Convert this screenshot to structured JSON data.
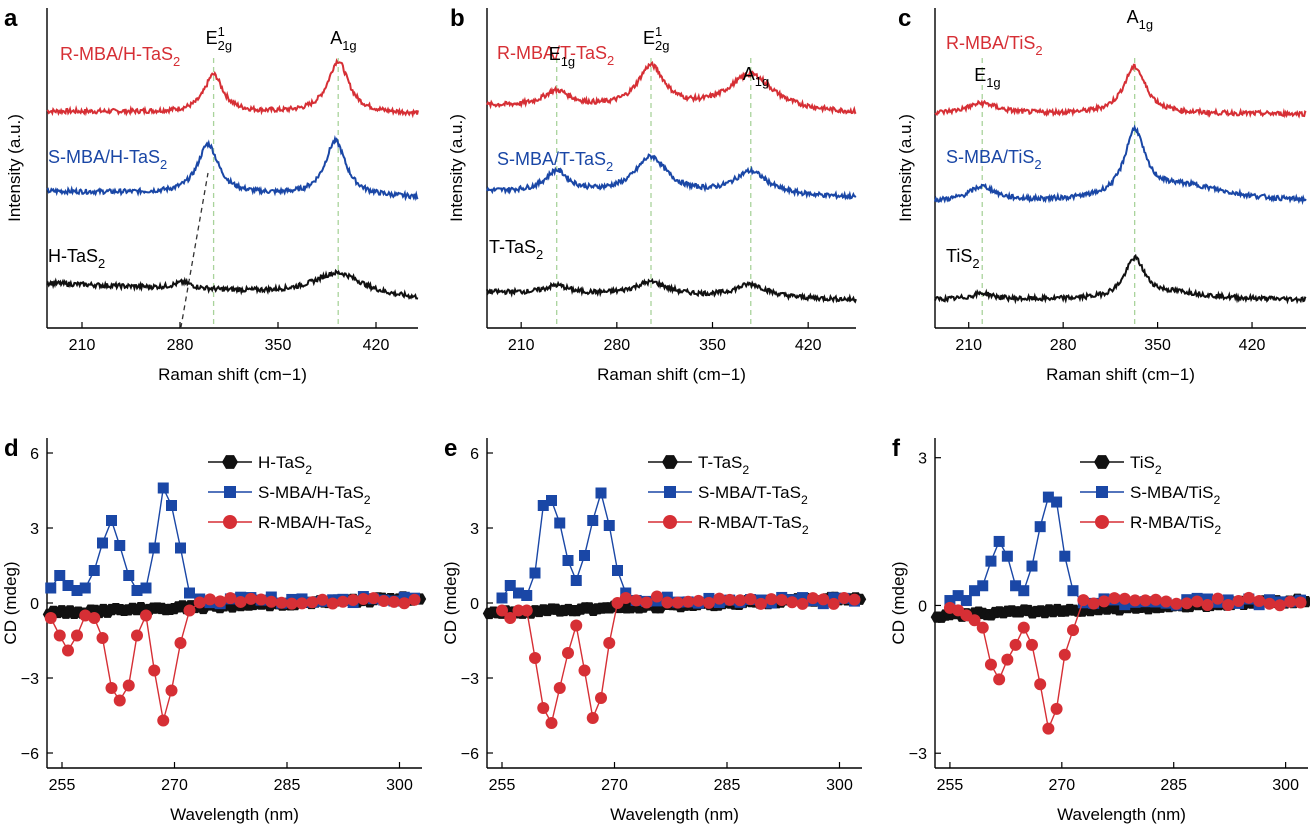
{
  "chart_data": [
    {
      "panel": "a",
      "type": "line",
      "xlabel": "Raman shift (cm−1)",
      "ylabel": "Intensity (a.u.)",
      "xlim": [
        185,
        450
      ],
      "xticks": [
        210,
        280,
        350,
        420
      ],
      "yticks_shown": false,
      "series": [
        {
          "name": "R-MBA/H-TaS",
          "sub": "2",
          "color": "#d62f35",
          "offset": 2.0,
          "peaks": [
            {
              "x": 304,
              "h": 0.72,
              "w": 8
            },
            {
              "x": 393,
              "h": 1.0,
              "w": 9
            }
          ],
          "start_level": 0.05
        },
        {
          "name": "S-MBA/H-TaS",
          "sub": "2",
          "color": "#1a47a6",
          "offset": 1.1,
          "peaks": [
            {
              "x": 300,
              "h": 0.95,
              "w": 9
            },
            {
              "x": 391,
              "h": 1.05,
              "w": 9
            }
          ],
          "start_level": 0.12
        },
        {
          "name": "H-TaS",
          "sub": "2",
          "color": "#111111",
          "offset": 0.0,
          "peaks": [
            {
              "x": 282,
              "h": 0.12,
              "w": 8
            },
            {
              "x": 393,
              "h": 0.45,
              "w": 22
            }
          ],
          "start_level": 0.32
        }
      ],
      "peak_labels": [
        {
          "text": "E",
          "sup": "1",
          "sub": "2g",
          "x": 304
        },
        {
          "text": "A",
          "sub": "1g",
          "x": 393
        }
      ],
      "guide_lines": [
        304,
        393
      ]
    },
    {
      "panel": "b",
      "type": "line",
      "xlabel": "Raman shift (cm−1)",
      "ylabel": "Intensity (a.u.)",
      "xlim": [
        185,
        455
      ],
      "xticks": [
        210,
        280,
        350,
        420
      ],
      "yticks_shown": false,
      "series": [
        {
          "name": "R-MBA/T-TaS",
          "sub": "2",
          "color": "#d62f35",
          "offset": 2.0,
          "peaks": [
            {
              "x": 236,
              "h": 0.3,
              "w": 12
            },
            {
              "x": 305,
              "h": 0.8,
              "w": 12
            },
            {
              "x": 378,
              "h": 0.7,
              "w": 20
            }
          ],
          "start_level": 0.15
        },
        {
          "name": "S-MBA/T-TaS",
          "sub": "2",
          "color": "#1a47a6",
          "offset": 1.1,
          "peaks": [
            {
              "x": 236,
              "h": 0.4,
              "w": 10
            },
            {
              "x": 305,
              "h": 0.7,
              "w": 14
            },
            {
              "x": 378,
              "h": 0.45,
              "w": 15
            }
          ],
          "start_level": 0.12
        },
        {
          "name": "T-TaS",
          "sub": "2",
          "color": "#111111",
          "offset": 0.0,
          "peaks": [
            {
              "x": 236,
              "h": 0.15,
              "w": 10
            },
            {
              "x": 305,
              "h": 0.25,
              "w": 15
            },
            {
              "x": 378,
              "h": 0.25,
              "w": 14
            }
          ],
          "start_level": 0.15
        }
      ],
      "peak_labels": [
        {
          "text": "E",
          "sub": "1g",
          "x": 236
        },
        {
          "text": "E",
          "sup": "1",
          "sub": "2g",
          "x": 305
        },
        {
          "text": "A",
          "sub": "1g",
          "x": 378
        }
      ],
      "guide_lines": [
        236,
        305,
        378
      ]
    },
    {
      "panel": "c",
      "type": "line",
      "xlabel": "Raman shift (cm−1)",
      "ylabel": "Intensity (a.u.)",
      "xlim": [
        185,
        460
      ],
      "xticks": [
        210,
        280,
        350,
        420
      ],
      "yticks_shown": false,
      "series": [
        {
          "name": "R-MBA/TiS",
          "sub": "2",
          "color": "#d62f35",
          "offset": 2.0,
          "peaks": [
            {
              "x": 220,
              "h": 0.2,
              "w": 14
            },
            {
              "x": 333,
              "h": 0.9,
              "w": 10
            }
          ],
          "start_level": 0.0
        },
        {
          "name": "S-MBA/TiS",
          "sub": "2",
          "color": "#1a47a6",
          "offset": 1.05,
          "peaks": [
            {
              "x": 220,
              "h": 0.28,
              "w": 12
            },
            {
              "x": 333,
              "h": 1.25,
              "w": 9
            },
            {
              "x": 370,
              "h": 0.3,
              "w": 40
            }
          ],
          "start_level": 0.0
        },
        {
          "name": "TiS",
          "sub": "2",
          "color": "#111111",
          "offset": 0.0,
          "peaks": [
            {
              "x": 220,
              "h": 0.12,
              "w": 10
            },
            {
              "x": 333,
              "h": 0.75,
              "w": 9
            },
            {
              "x": 365,
              "h": 0.12,
              "w": 30
            }
          ],
          "start_level": 0.0
        }
      ],
      "peak_labels": [
        {
          "text": "E",
          "sub": "1g",
          "x": 220
        },
        {
          "text": "A",
          "sub": "1g",
          "x": 333
        }
      ],
      "guide_lines": [
        220,
        333
      ]
    },
    {
      "panel": "d",
      "type": "scatter",
      "xlabel": "Wavelength (nm)",
      "ylabel": "CD (mdeg)",
      "xlim": [
        253,
        303
      ],
      "ylim": [
        -6.6,
        6.6
      ],
      "xticks": [
        255,
        270,
        285,
        300
      ],
      "yticks": [
        6,
        3,
        0,
        -3,
        -6
      ],
      "series": [
        {
          "name": "H-TaS",
          "sub": "2",
          "marker": "hexagon",
          "color": "#111111"
        },
        {
          "name": "S-MBA/H-TaS",
          "sub": "2",
          "marker": "square",
          "color": "#1a47a6",
          "x": [
            253.5,
            254.7,
            255.8,
            257.0,
            258.1,
            259.3,
            260.4,
            261.6,
            262.7,
            263.9,
            265.0,
            266.2,
            267.3,
            268.5,
            269.6,
            270.8,
            272.0
          ],
          "y": [
            0.6,
            1.1,
            0.7,
            0.5,
            0.6,
            1.3,
            2.4,
            3.3,
            2.3,
            1.1,
            0.5,
            0.6,
            2.2,
            4.6,
            3.9,
            2.2,
            0.4
          ]
        },
        {
          "name": "R-MBA/H-TaS",
          "sub": "2",
          "marker": "circle",
          "color": "#d62f35",
          "x": [
            253.5,
            254.7,
            255.8,
            257.0,
            258.1,
            259.3,
            260.4,
            261.6,
            262.7,
            263.9,
            265.0,
            266.2,
            267.3,
            268.5,
            269.6,
            270.8,
            272.0
          ],
          "y": [
            -0.6,
            -1.3,
            -1.9,
            -1.3,
            -0.5,
            -0.6,
            -1.4,
            -3.4,
            -3.9,
            -3.3,
            -1.3,
            -0.5,
            -2.7,
            -4.7,
            -3.5,
            -1.6,
            -0.3
          ]
        }
      ]
    },
    {
      "panel": "e",
      "type": "scatter",
      "xlabel": "Wavelength (nm)",
      "ylabel": "CD (mdeg)",
      "xlim": [
        253,
        303
      ],
      "ylim": [
        -6.6,
        6.6
      ],
      "xticks": [
        255,
        270,
        285,
        300
      ],
      "yticks": [
        6,
        3,
        0,
        -3,
        -6
      ],
      "series": [
        {
          "name": "T-TaS",
          "sub": "2",
          "marker": "hexagon",
          "color": "#111111"
        },
        {
          "name": "S-MBA/T-TaS",
          "sub": "2",
          "marker": "square",
          "color": "#1a47a6",
          "x": [
            255.0,
            256.1,
            257.2,
            258.3,
            259.4,
            260.5,
            261.6,
            262.7,
            263.8,
            264.9,
            266.0,
            267.1,
            268.2,
            269.3,
            270.4,
            271.5
          ],
          "y": [
            0.2,
            0.7,
            0.4,
            0.3,
            1.2,
            3.9,
            4.1,
            3.2,
            1.7,
            0.9,
            1.9,
            3.3,
            4.4,
            3.1,
            1.3,
            0.4
          ]
        },
        {
          "name": "R-MBA/T-TaS",
          "sub": "2",
          "marker": "circle",
          "color": "#d62f35",
          "x": [
            255.0,
            256.1,
            257.2,
            258.3,
            259.4,
            260.5,
            261.6,
            262.7,
            263.8,
            264.9,
            266.0,
            267.1,
            268.2,
            269.3,
            270.4,
            271.5
          ],
          "y": [
            -0.3,
            -0.6,
            -0.3,
            -0.3,
            -2.2,
            -4.2,
            -4.8,
            -3.4,
            -2.0,
            -0.9,
            -2.7,
            -4.6,
            -3.8,
            -1.6,
            0.0,
            0.2
          ]
        }
      ]
    },
    {
      "panel": "f",
      "type": "scatter",
      "xlabel": "Wavelength (nm)",
      "ylabel": "CD (mdeg)",
      "xlim": [
        253,
        303
      ],
      "ylim": [
        -3.3,
        3.4
      ],
      "xticks": [
        255,
        270,
        285,
        300
      ],
      "yticks": [
        3,
        0,
        -3
      ],
      "series": [
        {
          "name": "TiS",
          "sub": "2",
          "marker": "hexagon",
          "color": "#111111"
        },
        {
          "name": "S-MBA/TiS",
          "sub": "2",
          "marker": "square",
          "color": "#1a47a6",
          "x": [
            255.0,
            256.1,
            257.2,
            258.3,
            259.4,
            260.5,
            261.6,
            262.7,
            263.8,
            264.9,
            266.0,
            267.1,
            268.2,
            269.3,
            270.4,
            271.5
          ],
          "y": [
            0.1,
            0.2,
            0.1,
            0.3,
            0.4,
            0.9,
            1.3,
            1.0,
            0.4,
            0.3,
            0.8,
            1.6,
            2.2,
            2.1,
            1.0,
            0.3
          ]
        },
        {
          "name": "R-MBA/TiS",
          "sub": "2",
          "marker": "circle",
          "color": "#d62f35",
          "x": [
            255.0,
            256.1,
            257.2,
            258.3,
            259.4,
            260.5,
            261.6,
            262.7,
            263.8,
            264.9,
            266.0,
            267.1,
            268.2,
            269.3,
            270.4,
            271.5
          ],
          "y": [
            -0.05,
            -0.1,
            -0.2,
            -0.3,
            -0.45,
            -1.2,
            -1.5,
            -1.1,
            -0.8,
            -0.45,
            -0.8,
            -1.6,
            -2.5,
            -2.1,
            -1.0,
            -0.5
          ]
        }
      ]
    }
  ]
}
